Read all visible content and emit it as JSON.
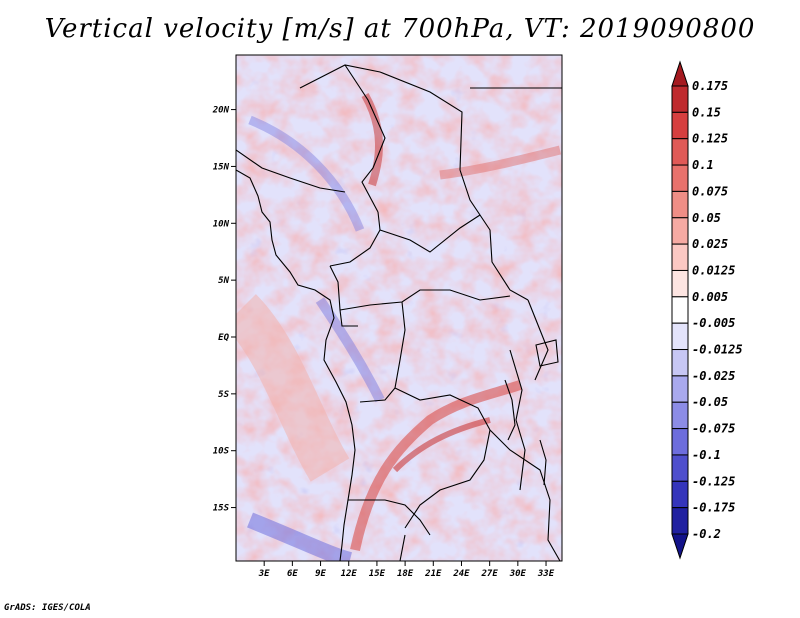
{
  "title": "Vertical velocity [m/s] at 700hPa, VT: 2019090800",
  "credit": "GrADS: IGES/COLA",
  "chart_data": {
    "type": "heatmap",
    "title": "Vertical velocity [m/s] at 700hPa, VT: 2019090800",
    "variable": "Vertical velocity",
    "units": "m/s",
    "level": "700hPa",
    "valid_time": "2019090800",
    "x_ticks": [
      "3E",
      "6E",
      "9E",
      "12E",
      "15E",
      "18E",
      "21E",
      "24E",
      "27E",
      "30E",
      "33E"
    ],
    "x_tick_values": [
      3,
      6,
      9,
      12,
      15,
      18,
      21,
      24,
      27,
      30,
      33
    ],
    "y_ticks": [
      "20N",
      "15N",
      "10N",
      "5N",
      "EQ",
      "5S",
      "10S",
      "15S"
    ],
    "y_tick_values": [
      20,
      15,
      10,
      5,
      0,
      -5,
      -10,
      -15
    ],
    "xlim": [
      0,
      34.7
    ],
    "ylim": [
      -19.7,
      24.8
    ],
    "colorbar_labels": [
      "0.175",
      "0.15",
      "0.125",
      "0.1",
      "0.075",
      "0.05",
      "0.025",
      "0.0125",
      "0.005",
      "-0.005",
      "-0.0125",
      "-0.025",
      "-0.05",
      "-0.075",
      "-0.1",
      "-0.125",
      "-0.175",
      "-0.2"
    ],
    "colorbar_colors": [
      "#a51a20",
      "#bf2a2e",
      "#d63f3f",
      "#e05a57",
      "#e8726c",
      "#ef8e86",
      "#f6aaa3",
      "#fbc8c3",
      "#fde5e2",
      "#ffffff",
      "#e4e4fb",
      "#c7c7f4",
      "#a9a9ee",
      "#8c8ce6",
      "#6d6ddd",
      "#4f4fcd",
      "#3535bb",
      "#2020a0",
      "#13138a"
    ],
    "colorbar_extend": "both"
  }
}
